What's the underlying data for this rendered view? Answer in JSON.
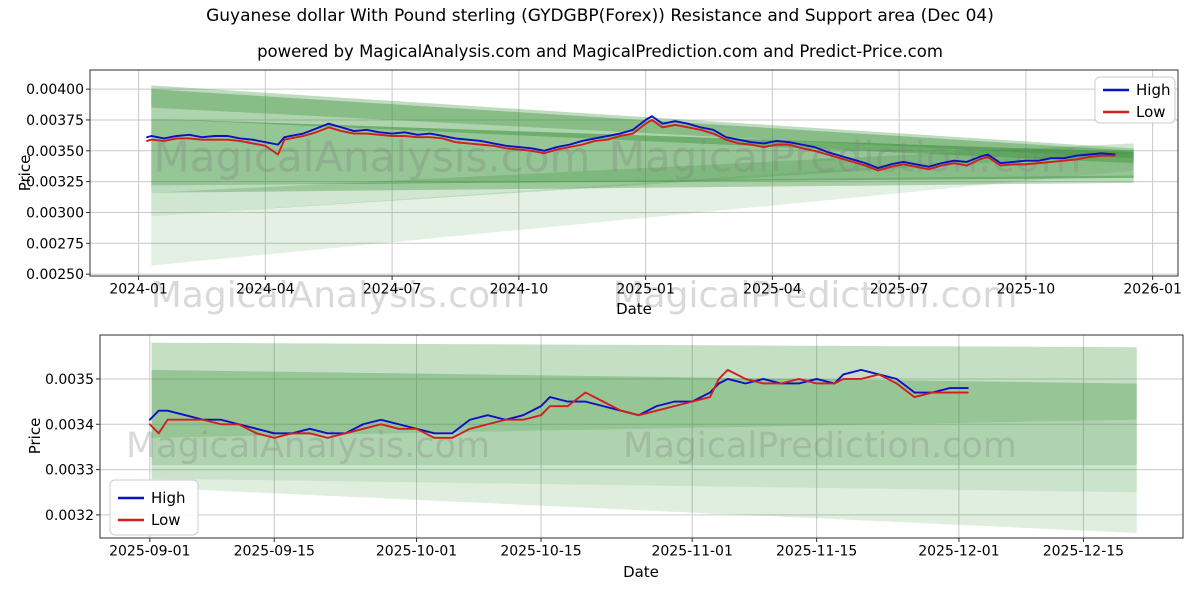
{
  "header": {
    "title": "Guyanese dollar With Pound sterling (GYDGBP(Forex)) Resistance and Support area (Dec 04)",
    "subtitle": "powered by MagicalAnalysis.com and MagicalPrediction.com and Predict-Price.com"
  },
  "watermark": {
    "left": "MagicalAnalysis.com",
    "right": "MagicalPrediction.com"
  },
  "colors": {
    "high": "#0f0fc4",
    "low": "#cf1f1f",
    "band": "#2e8b2e",
    "grid": "#c9c9c9",
    "axis": "#2e2e2e",
    "tick_text": "#000000",
    "watermark": "#808080",
    "legend_border": "#cccccc"
  },
  "chart_data": [
    {
      "type": "line",
      "xlabel": "Date",
      "ylabel": "Price",
      "x_unit": "months since 2024-01-01",
      "xlim": [
        -1.15,
        24.6
      ],
      "ylim": [
        0.002485,
        0.004155
      ],
      "grid": true,
      "xticks": {
        "values": [
          0,
          3,
          6,
          9,
          12,
          15,
          18,
          21,
          24
        ],
        "labels": [
          "2024-01",
          "2024-04",
          "2024-07",
          "2024-10",
          "2025-01",
          "2025-04",
          "2025-07",
          "2025-10",
          "2026-01"
        ]
      },
      "yticks": {
        "values": [
          0.0025,
          0.00275,
          0.003,
          0.00325,
          0.0035,
          0.00375,
          0.004
        ],
        "labels": [
          "0.00250",
          "0.00275",
          "0.00300",
          "0.00325",
          "0.00350",
          "0.00375",
          "0.00400"
        ]
      },
      "legend": {
        "position": "upper-right",
        "entries": [
          "High",
          "Low"
        ]
      },
      "series": [
        {
          "name": "High",
          "color_key": "high",
          "x": [
            0.2,
            0.3,
            0.6,
            0.9,
            1.2,
            1.5,
            1.8,
            2.1,
            2.4,
            2.7,
            3,
            3.3,
            3.45,
            3.6,
            3.9,
            4.2,
            4.5,
            4.8,
            5.1,
            5.4,
            5.7,
            6,
            6.3,
            6.6,
            6.9,
            7.2,
            7.5,
            7.8,
            8.1,
            8.4,
            8.7,
            9,
            9.3,
            9.6,
            9.9,
            10.2,
            10.5,
            10.8,
            11.1,
            11.4,
            11.7,
            12,
            12.15,
            12.4,
            12.7,
            13,
            13.3,
            13.6,
            13.9,
            14.2,
            14.5,
            14.8,
            15.1,
            15.4,
            15.7,
            16,
            16.3,
            16.6,
            16.9,
            17.2,
            17.5,
            17.8,
            18.1,
            18.4,
            18.7,
            19,
            19.3,
            19.6,
            19.9,
            20.1,
            20.4,
            20.7,
            21,
            21.3,
            21.6,
            21.9,
            22.2,
            22.5,
            22.8,
            23.1
          ],
          "values": [
            0.00361,
            0.00362,
            0.0036,
            0.00362,
            0.00363,
            0.00361,
            0.00362,
            0.00362,
            0.0036,
            0.00359,
            0.00357,
            0.00355,
            0.00361,
            0.00362,
            0.00364,
            0.00368,
            0.00372,
            0.00369,
            0.00366,
            0.00367,
            0.00365,
            0.00364,
            0.00365,
            0.00363,
            0.00364,
            0.00362,
            0.0036,
            0.00359,
            0.00358,
            0.00356,
            0.00354,
            0.00353,
            0.00352,
            0.0035,
            0.00353,
            0.00355,
            0.00358,
            0.0036,
            0.00362,
            0.00364,
            0.00367,
            0.00375,
            0.00378,
            0.00372,
            0.00374,
            0.00372,
            0.00369,
            0.00367,
            0.00361,
            0.00359,
            0.00357,
            0.00356,
            0.00358,
            0.00357,
            0.00355,
            0.00353,
            0.00349,
            0.00346,
            0.00343,
            0.0034,
            0.00336,
            0.00339,
            0.00341,
            0.00339,
            0.00337,
            0.0034,
            0.00342,
            0.00341,
            0.00345,
            0.00347,
            0.0034,
            0.00341,
            0.00342,
            0.00342,
            0.00344,
            0.00344,
            0.00346,
            0.00347,
            0.00348,
            0.00347
          ]
        },
        {
          "name": "Low",
          "color_key": "low",
          "x": [
            0.2,
            0.3,
            0.6,
            0.9,
            1.2,
            1.5,
            1.8,
            2.1,
            2.4,
            2.7,
            3,
            3.3,
            3.45,
            3.6,
            3.9,
            4.2,
            4.5,
            4.8,
            5.1,
            5.4,
            5.7,
            6,
            6.3,
            6.6,
            6.9,
            7.2,
            7.5,
            7.8,
            8.1,
            8.4,
            8.7,
            9,
            9.3,
            9.6,
            9.9,
            10.2,
            10.5,
            10.8,
            11.1,
            11.4,
            11.7,
            12,
            12.15,
            12.4,
            12.7,
            13,
            13.3,
            13.6,
            13.9,
            14.2,
            14.5,
            14.8,
            15.1,
            15.4,
            15.7,
            16,
            16.3,
            16.6,
            16.9,
            17.2,
            17.5,
            17.8,
            18.1,
            18.4,
            18.7,
            19,
            19.3,
            19.6,
            19.9,
            20.1,
            20.4,
            20.7,
            21,
            21.3,
            21.6,
            21.9,
            22.2,
            22.5,
            22.8,
            23.1
          ],
          "values": [
            0.00358,
            0.00359,
            0.00358,
            0.0036,
            0.0036,
            0.00359,
            0.00359,
            0.00359,
            0.00358,
            0.00356,
            0.00354,
            0.00347,
            0.00359,
            0.0036,
            0.00362,
            0.00365,
            0.00369,
            0.00366,
            0.00364,
            0.00364,
            0.00363,
            0.00362,
            0.00362,
            0.00361,
            0.00361,
            0.0036,
            0.00357,
            0.00356,
            0.00355,
            0.00354,
            0.00352,
            0.00351,
            0.0035,
            0.00348,
            0.00351,
            0.00353,
            0.00355,
            0.00358,
            0.00359,
            0.00362,
            0.00364,
            0.00372,
            0.00375,
            0.00369,
            0.00371,
            0.00369,
            0.00367,
            0.00364,
            0.00359,
            0.00356,
            0.00355,
            0.00353,
            0.00355,
            0.00355,
            0.00352,
            0.0035,
            0.00347,
            0.00344,
            0.00341,
            0.00338,
            0.00334,
            0.00337,
            0.00339,
            0.00337,
            0.00335,
            0.00338,
            0.0034,
            0.00338,
            0.00343,
            0.00345,
            0.00338,
            0.00339,
            0.00339,
            0.0034,
            0.00341,
            0.00342,
            0.00343,
            0.00345,
            0.00346,
            0.00346
          ]
        }
      ],
      "bands": [
        {
          "x0": 0.3,
          "x1": 23.55,
          "topL": 0.00403,
          "botL": 0.00385,
          "topR": 0.00352,
          "botR": 0.00344,
          "alpha": 0.3
        },
        {
          "x0": 0.3,
          "x1": 23.55,
          "topL": 0.004,
          "botL": 0.00376,
          "topR": 0.0035,
          "botR": 0.0034,
          "alpha": 0.38
        },
        {
          "x0": 0.3,
          "x1": 23.55,
          "topL": 0.00376,
          "botL": 0.00322,
          "topR": 0.00349,
          "botR": 0.00328,
          "alpha": 0.5
        },
        {
          "x0": 0.3,
          "x1": 23.55,
          "topL": 0.00322,
          "botL": 0.00316,
          "topR": 0.0033,
          "botR": 0.00324,
          "alpha": 0.32
        },
        {
          "x0": 0.3,
          "x1": 23.55,
          "topL": 0.00316,
          "botL": 0.00297,
          "topR": 0.00356,
          "botR": 0.00348,
          "alpha": 0.22
        },
        {
          "x0": 0.3,
          "x1": 23.55,
          "topL": 0.00297,
          "botL": 0.00257,
          "topR": 0.00351,
          "botR": 0.00334,
          "alpha": 0.13
        }
      ]
    },
    {
      "type": "line",
      "xlabel": "Date",
      "ylabel": "Price",
      "x_unit": "days since 2025-09-01",
      "xlim": [
        -5.6,
        116.2
      ],
      "ylim": [
        0.003149,
        0.003597
      ],
      "grid": true,
      "xticks": {
        "values": [
          0,
          14,
          30,
          44,
          61,
          75,
          91,
          105
        ],
        "labels": [
          "2025-09-01",
          "2025-09-15",
          "2025-10-01",
          "2025-10-15",
          "2025-11-01",
          "2025-11-15",
          "2025-12-01",
          "2025-12-15"
        ]
      },
      "yticks": {
        "values": [
          0.0032,
          0.0033,
          0.0034,
          0.0035
        ],
        "labels": [
          "0.0032",
          "0.0033",
          "0.0034",
          "0.0035"
        ]
      },
      "legend": {
        "position": "lower-left",
        "entries": [
          "High",
          "Low"
        ]
      },
      "series": [
        {
          "name": "High",
          "color_key": "high",
          "x": [
            0,
            1,
            2,
            4,
            6,
            8,
            10,
            12,
            14,
            16,
            18,
            20,
            22,
            24,
            26,
            28,
            30,
            32,
            34,
            36,
            38,
            40,
            42,
            44,
            45,
            47,
            49,
            51,
            53,
            55,
            57,
            59,
            61,
            63,
            64,
            65,
            67,
            69,
            71,
            73,
            75,
            77,
            78,
            80,
            82,
            84,
            86,
            88,
            90,
            92
          ],
          "values": [
            0.00341,
            0.00343,
            0.00343,
            0.00342,
            0.00341,
            0.00341,
            0.0034,
            0.00339,
            0.00338,
            0.00338,
            0.00339,
            0.00338,
            0.00338,
            0.0034,
            0.00341,
            0.0034,
            0.00339,
            0.00338,
            0.00338,
            0.00341,
            0.00342,
            0.00341,
            0.00342,
            0.00344,
            0.00346,
            0.00345,
            0.00345,
            0.00344,
            0.00343,
            0.00342,
            0.00344,
            0.00345,
            0.00345,
            0.00347,
            0.00349,
            0.0035,
            0.00349,
            0.0035,
            0.00349,
            0.00349,
            0.0035,
            0.00349,
            0.00351,
            0.00352,
            0.00351,
            0.0035,
            0.00347,
            0.00347,
            0.00348,
            0.00348
          ]
        },
        {
          "name": "Low",
          "color_key": "low",
          "x": [
            0,
            1,
            2,
            4,
            6,
            8,
            10,
            12,
            14,
            16,
            18,
            20,
            22,
            24,
            26,
            28,
            30,
            32,
            34,
            36,
            38,
            40,
            42,
            44,
            45,
            47,
            49,
            51,
            53,
            55,
            57,
            59,
            61,
            63,
            64,
            65,
            67,
            69,
            71,
            73,
            75,
            77,
            78,
            80,
            82,
            84,
            86,
            88,
            90,
            92
          ],
          "values": [
            0.0034,
            0.00338,
            0.00341,
            0.00341,
            0.00341,
            0.0034,
            0.0034,
            0.00338,
            0.00337,
            0.00338,
            0.00338,
            0.00337,
            0.00338,
            0.00339,
            0.0034,
            0.00339,
            0.00339,
            0.00337,
            0.00337,
            0.00339,
            0.0034,
            0.00341,
            0.00341,
            0.00342,
            0.00344,
            0.00344,
            0.00347,
            0.00345,
            0.00343,
            0.00342,
            0.00343,
            0.00344,
            0.00345,
            0.00346,
            0.0035,
            0.00352,
            0.0035,
            0.00349,
            0.00349,
            0.0035,
            0.00349,
            0.00349,
            0.0035,
            0.0035,
            0.00351,
            0.00349,
            0.00346,
            0.00347,
            0.00347,
            0.00347
          ]
        }
      ],
      "bands": [
        {
          "x0": 0.2,
          "x1": 111,
          "topL": 0.00358,
          "botL": 0.00352,
          "topR": 0.00357,
          "botR": 0.00349,
          "alpha": 0.28
        },
        {
          "x0": 0.2,
          "x1": 111,
          "topL": 0.00352,
          "botL": 0.00337,
          "topR": 0.00349,
          "botR": 0.00341,
          "alpha": 0.5
        },
        {
          "x0": 0.2,
          "x1": 111,
          "topL": 0.00337,
          "botL": 0.00331,
          "topR": 0.00341,
          "botR": 0.00331,
          "alpha": 0.38
        },
        {
          "x0": 0.2,
          "x1": 111,
          "topL": 0.00331,
          "botL": 0.00328,
          "topR": 0.00331,
          "botR": 0.00325,
          "alpha": 0.25
        },
        {
          "x0": 0.2,
          "x1": 111,
          "topL": 0.00328,
          "botL": 0.00326,
          "topR": 0.00325,
          "botR": 0.00316,
          "alpha": 0.15
        }
      ]
    }
  ]
}
